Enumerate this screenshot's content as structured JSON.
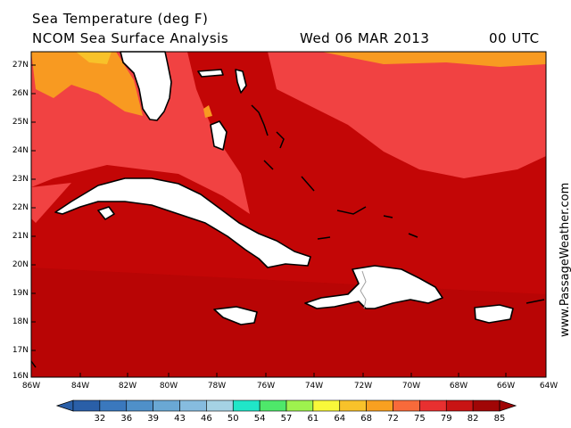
{
  "header": {
    "title": "Sea Temperature (deg F)",
    "subtitle": "NCOM Sea Surface Analysis",
    "date": "Wed 06 MAR 2013",
    "time": "00 UTC"
  },
  "credit": "www.PassageWeather.com",
  "latitude_labels": [
    "27N",
    "26N",
    "25N",
    "24N",
    "23N",
    "22N",
    "21N",
    "20N",
    "19N",
    "18N",
    "17N",
    "16N"
  ],
  "longitude_labels": [
    "86W",
    "84W",
    "82W",
    "80W",
    "78W",
    "76W",
    "74W",
    "72W",
    "70W",
    "68W",
    "66W",
    "64W"
  ],
  "colorbar": {
    "values": [
      "32",
      "36",
      "39",
      "43",
      "46",
      "50",
      "54",
      "57",
      "61",
      "64",
      "68",
      "72",
      "75",
      "79",
      "82",
      "85"
    ],
    "colors": [
      "#2a5fa8",
      "#3a78bd",
      "#4f90c9",
      "#6aa8d4",
      "#86bcdf",
      "#a5d2e4",
      "#20e6c8",
      "#4ee86a",
      "#9ef24e",
      "#f8f83a",
      "#f8c22a",
      "#f8a020",
      "#f86a3a",
      "#e83030",
      "#c81414",
      "#a00606"
    ]
  },
  "colors": {
    "deep_red": "#c30606",
    "mid_red": "#f14242",
    "orange": "#f89a21",
    "land": "#ffffff"
  }
}
